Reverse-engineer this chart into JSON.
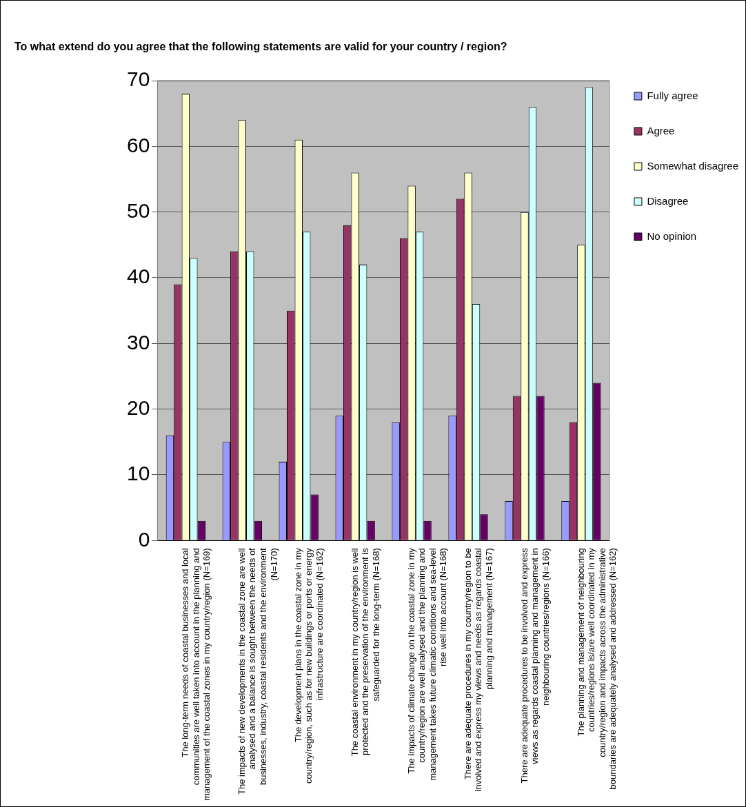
{
  "chart_data": {
    "type": "bar",
    "title": "To what extend do you agree that the following statements are valid for your country / region?",
    "categories": [
      "The long-term needs of coastal businesses and local communities are well taken into account in the planning and management of the coastal zones in my country/region (N=169)",
      "The impacts of new developments in the coastal zone are well analysed and a balance is sought between the needs of businesses, industry, coastal residents and the environment (N=170)",
      "The development plans in the coastal zone in my country/region, such as for new buildings or ports or energy infrastructure are coordinated (N=162)",
      "The coastal environment in my country/region is well protected and the preservation of the environment is safeguarded for the long-term (N=168)",
      "The impacts of climate change on the coastal zone in my country/region are well analysed and the planning and management takes future climatic conditions and sea-level rise well into account (N=168)",
      "There are adequate procedures in my country/region to be involved and express my views and needs as regards coastal planning and management (N=167)",
      "There are adequate procedures to be involved and express views as regards coastal planning and management in neighbouring countries/regions (N=166)",
      "The planning and management of neighbouring countries/regions is/are well coordinated in my country/region and impacts across the administrative boundaries are adequately analysed and addressed (N=162)"
    ],
    "series": [
      {
        "name": "Fully agree",
        "color": "#9999ff",
        "values": [
          16,
          15,
          12,
          19,
          18,
          19,
          6,
          6
        ]
      },
      {
        "name": "Agree",
        "color": "#993366",
        "values": [
          39,
          44,
          35,
          48,
          46,
          52,
          22,
          18
        ]
      },
      {
        "name": "Somewhat disagree",
        "color": "#ffffcc",
        "values": [
          68,
          64,
          61,
          56,
          54,
          56,
          50,
          45
        ]
      },
      {
        "name": "Disagree",
        "color": "#ccffff",
        "values": [
          43,
          44,
          47,
          42,
          47,
          36,
          66,
          69
        ]
      },
      {
        "name": "No opinion",
        "color": "#660066",
        "values": [
          3,
          3,
          7,
          3,
          3,
          4,
          22,
          24
        ]
      }
    ],
    "ylim": [
      0,
      70
    ],
    "yticks": [
      0,
      10,
      20,
      30,
      40,
      50,
      60,
      70
    ],
    "grid": "y",
    "legend": "right"
  }
}
